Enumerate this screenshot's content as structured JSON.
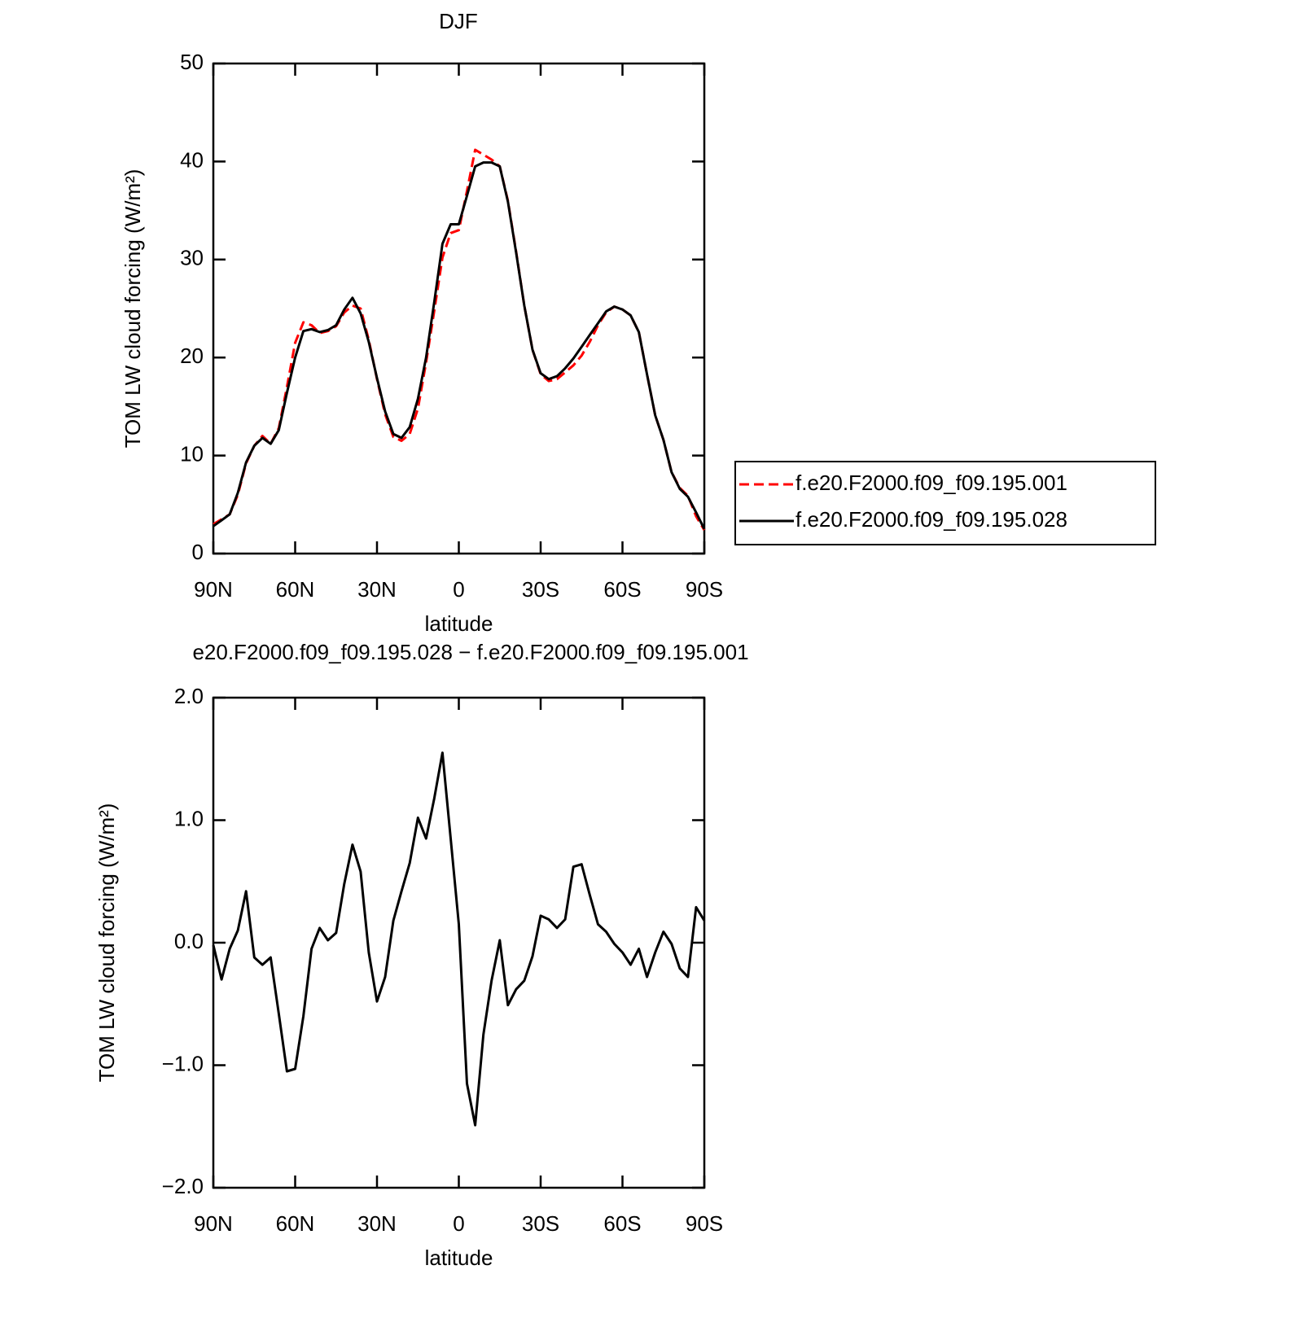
{
  "chart_data": [
    {
      "type": "line",
      "title": "DJF",
      "xlabel": "latitude",
      "ylabel": "TOM LW cloud forcing (W/m²)",
      "xlim": [
        90,
        -90
      ],
      "ylim": [
        0,
        50
      ],
      "xticks": [
        {
          "value": 90,
          "label": "90N"
        },
        {
          "value": 60,
          "label": "60N"
        },
        {
          "value": 30,
          "label": "30N"
        },
        0,
        {
          "value": -30,
          "label": "30S"
        },
        {
          "value": -60,
          "label": "60S"
        },
        {
          "value": -90,
          "label": "90S"
        }
      ],
      "yticks": [
        0,
        10,
        20,
        30,
        40,
        50
      ],
      "legend": "right",
      "x": [
        90,
        87,
        84,
        81,
        78,
        75,
        72,
        69,
        66,
        63,
        60,
        57,
        54,
        51,
        48,
        45,
        42,
        39,
        36,
        33,
        30,
        27,
        24,
        21,
        18,
        15,
        12,
        9,
        6,
        3,
        0,
        -3,
        -6,
        -9,
        -12,
        -15,
        -18,
        -21,
        -24,
        -27,
        -30,
        -33,
        -36,
        -39,
        -42,
        -45,
        -48,
        -51,
        -54,
        -57,
        -60,
        -63,
        -66,
        -69,
        -72,
        -75,
        -78,
        -81,
        -84,
        -87,
        -90
      ],
      "series": [
        {
          "name": "f.e20.F2000.f09_f09.195.001",
          "color": "#ff0000",
          "dashed": true,
          "values": [
            3.0,
            3.5,
            4.0,
            6.0,
            9.2,
            11.0,
            12.0,
            11.2,
            12.8,
            17.0,
            21.5,
            23.6,
            23.3,
            22.5,
            22.7,
            23.2,
            24.6,
            25.3,
            25.0,
            21.8,
            17.8,
            14.2,
            11.9,
            11.5,
            12.2,
            14.8,
            19.5,
            24.8,
            30.2,
            32.7,
            33.0,
            37.0,
            41.2,
            40.7,
            40.2,
            39.5,
            36.0,
            30.8,
            25.3,
            20.8,
            18.3,
            17.6,
            17.8,
            18.5,
            19.2,
            20.2,
            21.6,
            23.3,
            24.6,
            25.2,
            24.9,
            24.3,
            22.6,
            18.3,
            14.1,
            11.6,
            8.3,
            6.7,
            5.9,
            3.8,
            2.4
          ]
        },
        {
          "name": "f.e20.F2000.f09_f09.195.028",
          "color": "#000000",
          "dashed": false,
          "values": [
            2.8,
            3.4,
            4.0,
            6.2,
            9.3,
            11.0,
            11.8,
            11.2,
            12.6,
            16.4,
            20.0,
            22.7,
            22.9,
            22.6,
            22.8,
            23.3,
            24.9,
            26.1,
            24.5,
            21.6,
            17.9,
            14.5,
            12.2,
            11.8,
            12.9,
            15.8,
            20.0,
            25.7,
            31.6,
            33.6,
            33.6,
            36.5,
            39.5,
            39.9,
            39.9,
            39.5,
            35.9,
            30.7,
            25.3,
            20.8,
            18.4,
            17.8,
            18.1,
            18.9,
            19.9,
            21.1,
            22.3,
            23.5,
            24.7,
            25.2,
            24.9,
            24.3,
            22.6,
            18.3,
            14.1,
            11.6,
            8.3,
            6.6,
            5.8,
            4.2,
            2.5
          ]
        }
      ]
    },
    {
      "type": "line",
      "title": "e20.F2000.f09_f09.195.028 − f.e20.F2000.f09_f09.195.001",
      "xlabel": "latitude",
      "ylabel": "TOM LW cloud forcing (W/m²)",
      "xlim": [
        90,
        -90
      ],
      "ylim": [
        -2,
        2
      ],
      "xticks": [
        {
          "value": 90,
          "label": "90N"
        },
        {
          "value": 60,
          "label": "60N"
        },
        {
          "value": 30,
          "label": "30N"
        },
        0,
        {
          "value": -30,
          "label": "30S"
        },
        {
          "value": -60,
          "label": "60S"
        },
        {
          "value": -90,
          "label": "90S"
        }
      ],
      "yticks": [
        {
          "value": -2,
          "label": "−2.0"
        },
        {
          "value": -1,
          "label": "−1.0"
        },
        {
          "value": 0,
          "label": "0.0"
        },
        {
          "value": 1,
          "label": "1.0"
        },
        {
          "value": 2,
          "label": "2.0"
        }
      ],
      "x": [
        90,
        87,
        84,
        81,
        78,
        75,
        72,
        69,
        66,
        63,
        60,
        57,
        54,
        51,
        48,
        45,
        42,
        39,
        36,
        33,
        30,
        27,
        24,
        21,
        18,
        15,
        12,
        9,
        6,
        3,
        0,
        -3,
        -6,
        -9,
        -12,
        -15,
        -18,
        -21,
        -24,
        -27,
        -30,
        -33,
        -36,
        -39,
        -42,
        -45,
        -48,
        -51,
        -54,
        -57,
        -60,
        -63,
        -66,
        -69,
        -72,
        -75,
        -78,
        -81,
        -84,
        -87,
        -90
      ],
      "series": [
        {
          "color": "#000000",
          "dashed": false,
          "values": [
            -0.02,
            -0.3,
            -0.05,
            0.1,
            0.42,
            -0.12,
            -0.18,
            -0.12,
            -0.58,
            -1.05,
            -1.03,
            -0.6,
            -0.05,
            0.12,
            0.02,
            0.08,
            0.48,
            0.8,
            0.58,
            -0.08,
            -0.48,
            -0.28,
            0.18,
            0.42,
            0.65,
            1.02,
            0.85,
            1.18,
            1.55,
            0.85,
            0.15,
            -1.15,
            -1.49,
            -0.75,
            -0.31,
            0.02,
            -0.51,
            -0.38,
            -0.31,
            -0.11,
            0.22,
            0.19,
            0.12,
            0.19,
            0.62,
            0.64,
            0.39,
            0.15,
            0.09,
            -0.01,
            -0.08,
            -0.18,
            -0.05,
            -0.28,
            -0.08,
            0.09,
            -0.01,
            -0.21,
            -0.28,
            0.29,
            0.18
          ]
        }
      ]
    }
  ]
}
